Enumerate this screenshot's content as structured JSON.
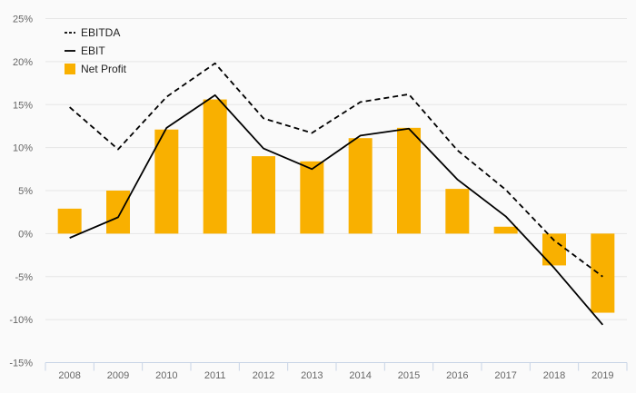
{
  "chart_data": {
    "type": "bar",
    "categories": [
      "2008",
      "2009",
      "2010",
      "2011",
      "2012",
      "2013",
      "2014",
      "2015",
      "2016",
      "2017",
      "2018",
      "2019"
    ],
    "series": [
      {
        "name": "EBITDA",
        "type": "line",
        "style": "dashed",
        "color": "#000000",
        "values": [
          14.7,
          9.8,
          15.9,
          19.8,
          13.4,
          11.7,
          15.3,
          16.2,
          9.7,
          5.1,
          -0.8,
          -5.0
        ]
      },
      {
        "name": "EBIT",
        "type": "line",
        "style": "solid",
        "color": "#000000",
        "values": [
          -0.5,
          1.9,
          12.3,
          16.1,
          9.9,
          7.5,
          11.4,
          12.2,
          6.3,
          2.0,
          -4.0,
          -10.6
        ]
      },
      {
        "name": "Net Profit",
        "type": "bar",
        "color": "#F9B000",
        "values": [
          2.9,
          5.0,
          12.1,
          15.6,
          9.0,
          8.4,
          11.1,
          12.3,
          5.2,
          0.8,
          -3.7,
          -9.2
        ]
      }
    ],
    "yticks": [
      "25%",
      "20%",
      "15%",
      "10%",
      "5%",
      "0%",
      "-5%",
      "-10%",
      "-15%"
    ],
    "ylim": [
      -15,
      25
    ],
    "grid": true,
    "legend_position": "top-left",
    "title": "",
    "xlabel": "",
    "ylabel": ""
  }
}
